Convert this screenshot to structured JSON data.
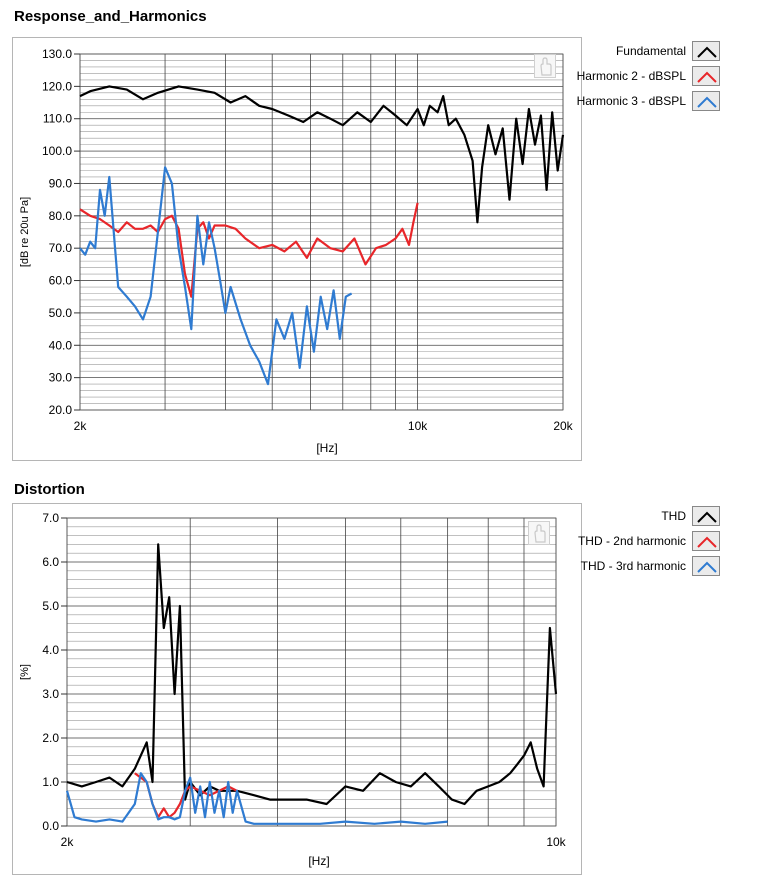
{
  "panels": {
    "response": {
      "title": "Response_and_Harmonics"
    },
    "distortion": {
      "title": "Distortion"
    }
  },
  "icons": {
    "hand_tool": "hand-cursor-icon",
    "legend_swatch": "line-swatch-icon"
  },
  "chart_data": [
    {
      "type": "line",
      "title": "Response_and_Harmonics",
      "xlabel": "[Hz]",
      "ylabel": "[dB re 20u Pa]",
      "xscale": "log",
      "xlim": [
        2000,
        20000
      ],
      "ylim": [
        20,
        130
      ],
      "xticks": [
        2000,
        10000,
        20000
      ],
      "xtick_labels": [
        "2k",
        "10k",
        "20k"
      ],
      "yticks": [
        20,
        30,
        40,
        50,
        60,
        70,
        80,
        90,
        100,
        110,
        120,
        130
      ],
      "ytick_labels": [
        "20.0",
        "30.0",
        "40.0",
        "50.0",
        "60.0",
        "70.0",
        "80.0",
        "90.0",
        "100.0",
        "110.0",
        "120.0",
        "130.0"
      ],
      "grid": true,
      "legend_position": "right",
      "series": [
        {
          "name": "Fundamental",
          "color": "#000000",
          "x": [
            2000,
            2100,
            2300,
            2500,
            2700,
            2900,
            3200,
            3500,
            3800,
            4100,
            4400,
            4700,
            5000,
            5400,
            5800,
            6200,
            6600,
            7000,
            7500,
            8000,
            8500,
            9000,
            9500,
            10000,
            10300,
            10600,
            11000,
            11300,
            11600,
            12000,
            12500,
            13000,
            13300,
            13600,
            14000,
            14500,
            15000,
            15500,
            16000,
            16500,
            17000,
            17500,
            18000,
            18500,
            19000,
            19500,
            20000
          ],
          "y": [
            117,
            118.5,
            120,
            119,
            116,
            118,
            120,
            119,
            118,
            115,
            117,
            114,
            113,
            111,
            109,
            112,
            110,
            108,
            112,
            109,
            114,
            111,
            108,
            113,
            108,
            114,
            112,
            117,
            108,
            110,
            105,
            97,
            78,
            95,
            108,
            99,
            107,
            85,
            110,
            96,
            113,
            102,
            111,
            88,
            112,
            94,
            105
          ]
        },
        {
          "name": "Harmonic 2 - dBSPL",
          "color": "#e8262a",
          "x": [
            2000,
            2100,
            2200,
            2300,
            2400,
            2500,
            2600,
            2700,
            2800,
            2900,
            3000,
            3100,
            3200,
            3300,
            3400,
            3500,
            3600,
            3700,
            3800,
            4000,
            4200,
            4400,
            4700,
            5000,
            5300,
            5600,
            5900,
            6200,
            6600,
            7000,
            7400,
            7800,
            8200,
            8600,
            9000,
            9300,
            9600,
            9800,
            10000
          ],
          "y": [
            82,
            80,
            79,
            77,
            75,
            78,
            76,
            76,
            77,
            75,
            79,
            80,
            76,
            62,
            55,
            76,
            78,
            73,
            77,
            77,
            76,
            73,
            70,
            71,
            69,
            72,
            67,
            73,
            70,
            69,
            73,
            65,
            70,
            71,
            73,
            76,
            71,
            78,
            84
          ]
        },
        {
          "name": "Harmonic 3 - dBSPL",
          "color": "#2f7bd1",
          "x": [
            2000,
            2050,
            2100,
            2150,
            2200,
            2250,
            2300,
            2400,
            2500,
            2600,
            2700,
            2800,
            2900,
            3000,
            3100,
            3200,
            3300,
            3400,
            3500,
            3600,
            3700,
            3800,
            3900,
            4000,
            4100,
            4300,
            4500,
            4700,
            4900,
            5100,
            5300,
            5500,
            5700,
            5900,
            6100,
            6300,
            6500,
            6700,
            6900,
            7100,
            7300
          ],
          "y": [
            70,
            68,
            72,
            70,
            88,
            80,
            92,
            58,
            55,
            52,
            48,
            55,
            75,
            95,
            90,
            70,
            58,
            45,
            80,
            65,
            78,
            70,
            60,
            50,
            58,
            48,
            40,
            35,
            28,
            48,
            42,
            50,
            33,
            52,
            38,
            55,
            45,
            57,
            42,
            55,
            56
          ]
        }
      ]
    },
    {
      "type": "line",
      "title": "Distortion",
      "xlabel": "[Hz]",
      "ylabel": "[%]",
      "xscale": "log",
      "xlim": [
        2000,
        10000
      ],
      "ylim": [
        0,
        7
      ],
      "xticks": [
        2000,
        10000
      ],
      "xtick_labels": [
        "2k",
        "10k"
      ],
      "yticks": [
        0,
        1,
        2,
        3,
        4,
        5,
        6,
        7
      ],
      "ytick_labels": [
        "0.0",
        "1.0",
        "2.0",
        "3.0",
        "4.0",
        "5.0",
        "6.0",
        "7.0"
      ],
      "grid": true,
      "legend_position": "right",
      "series": [
        {
          "name": "THD",
          "color": "#000000",
          "x": [
            2000,
            2100,
            2200,
            2300,
            2400,
            2500,
            2600,
            2650,
            2700,
            2750,
            2800,
            2850,
            2900,
            2950,
            3000,
            3100,
            3200,
            3300,
            3500,
            3700,
            3900,
            4100,
            4400,
            4700,
            5000,
            5300,
            5600,
            5900,
            6200,
            6500,
            6800,
            7100,
            7400,
            7700,
            8000,
            8300,
            8600,
            8800,
            9000,
            9200,
            9400,
            9600,
            9800,
            10000
          ],
          "y": [
            1.0,
            0.9,
            1.0,
            1.1,
            0.9,
            1.3,
            1.9,
            1.0,
            6.4,
            4.5,
            5.2,
            3.0,
            5.0,
            0.6,
            1.0,
            0.7,
            0.9,
            0.8,
            0.8,
            0.7,
            0.6,
            0.6,
            0.6,
            0.5,
            0.9,
            0.8,
            1.2,
            1.0,
            0.9,
            1.2,
            0.9,
            0.6,
            0.5,
            0.8,
            0.9,
            1.0,
            1.2,
            1.4,
            1.6,
            1.9,
            1.3,
            0.9,
            4.5,
            3.0
          ]
        },
        {
          "name": "THD - 2nd harmonic",
          "color": "#e8262a",
          "x": [
            2500,
            2600,
            2650,
            2700,
            2750,
            2800,
            2850,
            2900,
            2950,
            3000,
            3100,
            3200,
            3300,
            3400,
            3500
          ],
          "y": [
            1.2,
            1.0,
            0.5,
            0.2,
            0.4,
            0.2,
            0.3,
            0.5,
            0.8,
            0.9,
            0.8,
            0.7,
            0.8,
            0.9,
            0.8
          ]
        },
        {
          "name": "THD - 3rd harmonic",
          "color": "#2f7bd1",
          "x": [
            2000,
            2050,
            2100,
            2200,
            2300,
            2400,
            2500,
            2550,
            2600,
            2650,
            2700,
            2750,
            2800,
            2850,
            2900,
            2950,
            3000,
            3050,
            3100,
            3150,
            3200,
            3250,
            3300,
            3350,
            3400,
            3450,
            3500,
            3600,
            3700,
            3900,
            4200,
            4600,
            5000,
            5500,
            6000,
            6500,
            7000
          ],
          "y": [
            0.8,
            0.2,
            0.15,
            0.1,
            0.15,
            0.1,
            0.5,
            1.2,
            1.0,
            0.5,
            0.15,
            0.2,
            0.2,
            0.15,
            0.2,
            0.8,
            1.1,
            0.3,
            0.9,
            0.2,
            1.0,
            0.3,
            0.8,
            0.2,
            1.0,
            0.3,
            0.8,
            0.1,
            0.05,
            0.05,
            0.05,
            0.05,
            0.1,
            0.05,
            0.1,
            0.05,
            0.1
          ]
        }
      ]
    }
  ]
}
